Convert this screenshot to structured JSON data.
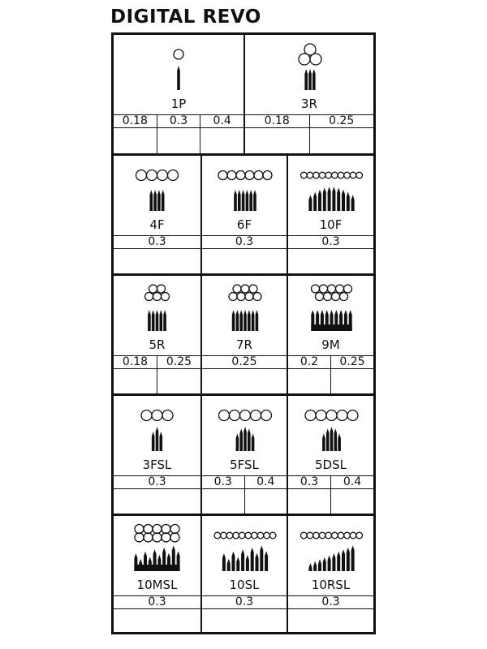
{
  "title": "DIGITAL REVO",
  "rows": [
    [
      {
        "label": "1P",
        "icon": "single-point-needle",
        "sizes": [
          "0.18",
          "0.3",
          "0.4"
        ]
      },
      {
        "label": "3R",
        "icon": "round-liner-3",
        "sizes": [
          "0.18",
          "0.25"
        ]
      }
    ],
    [
      {
        "label": "4F",
        "icon": "flat-4",
        "sizes": [
          "0.3"
        ]
      },
      {
        "label": "6F",
        "icon": "flat-6",
        "sizes": [
          "0.3"
        ]
      },
      {
        "label": "10F",
        "icon": "flat-10",
        "sizes": [
          "0.3"
        ]
      }
    ],
    [
      {
        "label": "5R",
        "icon": "round-5",
        "sizes": [
          "0.18",
          "0.25"
        ]
      },
      {
        "label": "7R",
        "icon": "round-7",
        "sizes": [
          "0.25"
        ]
      },
      {
        "label": "9M",
        "icon": "magnum-9",
        "sizes": [
          "0.2",
          "0.25"
        ]
      }
    ],
    [
      {
        "label": "3FSL",
        "icon": "flat-shader-3",
        "sizes": [
          "0.3"
        ]
      },
      {
        "label": "5FSL",
        "icon": "flat-shader-5",
        "sizes": [
          "0.3",
          "0.4"
        ]
      },
      {
        "label": "5DSL",
        "icon": "shader-5",
        "sizes": [
          "0.3",
          "0.4"
        ]
      }
    ],
    [
      {
        "label": "10MSL",
        "icon": "magnum-shader-10",
        "sizes": [
          "0.3"
        ]
      },
      {
        "label": "10SL",
        "icon": "shader-10",
        "sizes": [
          "0.3"
        ]
      },
      {
        "label": "10RSL",
        "icon": "round-shader-10",
        "sizes": [
          "0.3"
        ]
      }
    ]
  ]
}
